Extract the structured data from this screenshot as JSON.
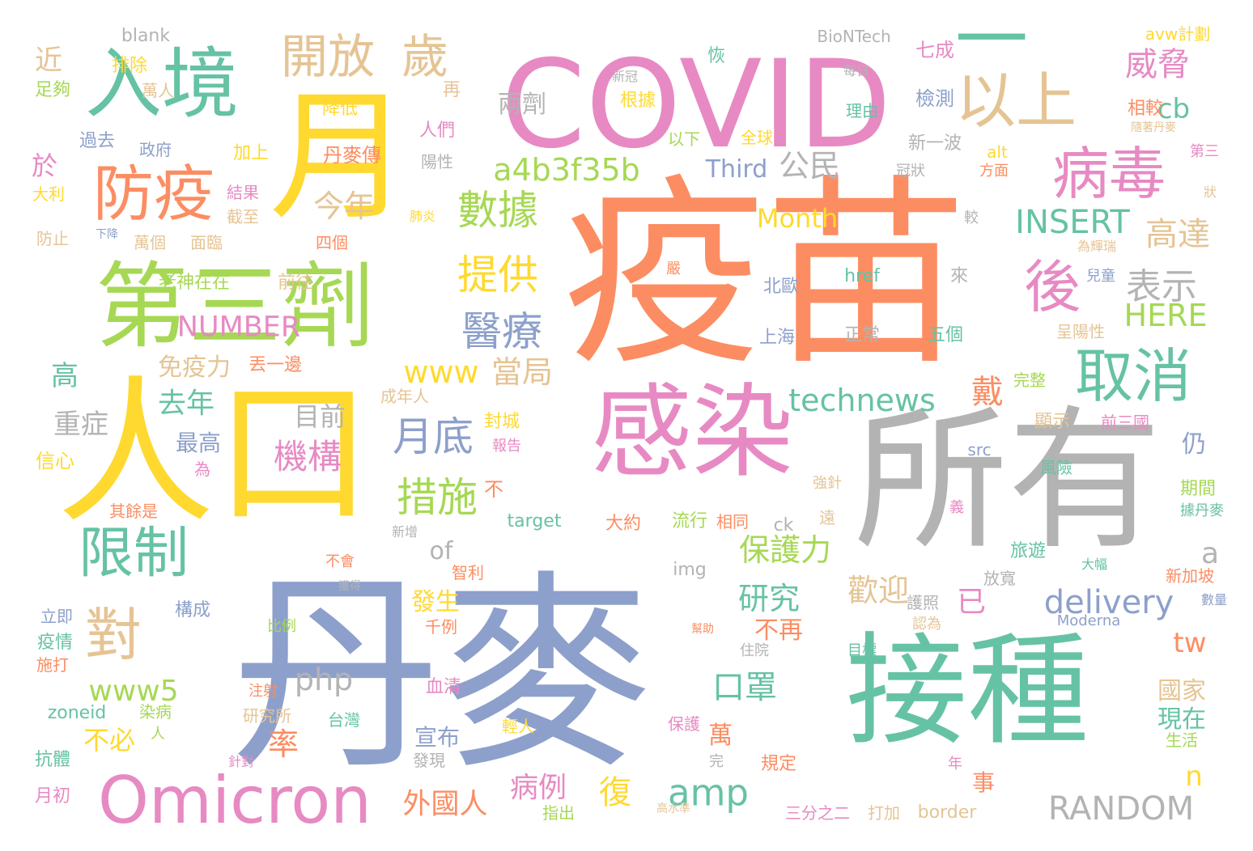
{
  "palette": {
    "green": "#66c2a5",
    "orange": "#fc8d62",
    "blue": "#8da0cb",
    "pink": "#e78ac3",
    "lime": "#a6d854",
    "yellow": "#ffd92f",
    "tan": "#e5c494",
    "gray": "#b3b3b3"
  },
  "words": [
    {
      "text": "疫苗",
      "color": "orange"
    },
    {
      "text": "丹麥",
      "color": "blue"
    },
    {
      "text": "COVID",
      "color": "pink"
    },
    {
      "text": "所有",
      "color": "gray"
    },
    {
      "text": "接種",
      "color": "green"
    },
    {
      "text": "人口",
      "color": "yellow"
    },
    {
      "text": "感染",
      "color": "pink"
    },
    {
      "text": "第三劑",
      "color": "lime"
    },
    {
      "text": "入境",
      "color": "green"
    },
    {
      "text": "月",
      "color": "yellow"
    },
    {
      "text": "以上",
      "color": "tan"
    },
    {
      "text": "一",
      "color": "green"
    },
    {
      "text": "Omicron",
      "color": "pink"
    },
    {
      "text": "防疫",
      "color": "orange"
    },
    {
      "text": "病毒",
      "color": "pink"
    },
    {
      "text": "取消",
      "color": "green"
    },
    {
      "text": "限制",
      "color": "green"
    },
    {
      "text": "開放",
      "color": "tan"
    },
    {
      "text": "歲",
      "color": "tan"
    },
    {
      "text": "後",
      "color": "pink"
    },
    {
      "text": "對",
      "color": "tan"
    },
    {
      "text": "a4b3f35b",
      "color": "lime"
    },
    {
      "text": "數據",
      "color": "lime"
    },
    {
      "text": "提供",
      "color": "yellow"
    },
    {
      "text": "醫療",
      "color": "blue"
    },
    {
      "text": "表示",
      "color": "gray"
    },
    {
      "text": "威脅",
      "color": "pink"
    },
    {
      "text": "INSERT",
      "color": "green"
    },
    {
      "text": "高達",
      "color": "tan"
    },
    {
      "text": "月底",
      "color": "blue"
    },
    {
      "text": "措施",
      "color": "lime"
    },
    {
      "text": "technews",
      "color": "green"
    },
    {
      "text": "RANDOM",
      "color": "gray"
    },
    {
      "text": "delivery",
      "color": "blue"
    },
    {
      "text": "amp",
      "color": "green"
    },
    {
      "text": "機構",
      "color": "pink"
    },
    {
      "text": "www",
      "color": "yellow"
    },
    {
      "text": "當局",
      "color": "tan"
    },
    {
      "text": "Month",
      "color": "yellow"
    },
    {
      "text": "NUMBER",
      "color": "pink"
    },
    {
      "text": "HERE",
      "color": "lime"
    },
    {
      "text": "公民",
      "color": "gray"
    },
    {
      "text": "今年",
      "color": "tan"
    },
    {
      "text": "cb",
      "color": "green"
    },
    {
      "text": "兩劑",
      "color": "gray"
    },
    {
      "text": "Third",
      "color": "blue"
    },
    {
      "text": "目前",
      "color": "gray"
    },
    {
      "text": "去年",
      "color": "green"
    },
    {
      "text": "保護力",
      "color": "lime"
    },
    {
      "text": "研究",
      "color": "green"
    },
    {
      "text": "歡迎",
      "color": "tan"
    },
    {
      "text": "口罩",
      "color": "green"
    },
    {
      "text": "戴",
      "color": "orange"
    },
    {
      "text": "php",
      "color": "gray"
    },
    {
      "text": "www5",
      "color": "lime"
    },
    {
      "text": "病例",
      "color": "pink"
    },
    {
      "text": "外國人",
      "color": "orange"
    },
    {
      "text": "復",
      "color": "yellow"
    },
    {
      "text": "率",
      "color": "orange"
    },
    {
      "text": "萬",
      "color": "orange"
    },
    {
      "text": "已",
      "color": "pink"
    },
    {
      "text": "tw",
      "color": "orange"
    },
    {
      "text": "仍",
      "color": "blue"
    },
    {
      "text": "a",
      "color": "gray"
    },
    {
      "text": "n",
      "color": "yellow"
    },
    {
      "text": "of",
      "color": "gray"
    },
    {
      "text": "免疫力",
      "color": "tan"
    },
    {
      "text": "高",
      "color": "green"
    },
    {
      "text": "重症",
      "color": "gray"
    },
    {
      "text": "最高",
      "color": "blue"
    },
    {
      "text": "不必",
      "color": "yellow"
    },
    {
      "text": "宣布",
      "color": "blue"
    },
    {
      "text": "發生",
      "color": "yellow"
    },
    {
      "text": "不再",
      "color": "orange"
    },
    {
      "text": "國家",
      "color": "tan"
    },
    {
      "text": "現在",
      "color": "green"
    },
    {
      "text": "事",
      "color": "orange"
    },
    {
      "text": "近",
      "color": "tan"
    },
    {
      "text": "於",
      "color": "pink"
    },
    {
      "text": "blank",
      "color": "gray"
    },
    {
      "text": "BioNTech",
      "color": "gray"
    },
    {
      "text": "avw計劃",
      "color": "yellow"
    },
    {
      "text": "排除",
      "color": "yellow"
    },
    {
      "text": "萬人",
      "color": "tan"
    },
    {
      "text": "足夠",
      "color": "lime"
    },
    {
      "text": "恢",
      "color": "green"
    },
    {
      "text": "七成",
      "color": "pink"
    },
    {
      "text": "再",
      "color": "tan"
    },
    {
      "text": "降低",
      "color": "yellow"
    },
    {
      "text": "根據",
      "color": "yellow"
    },
    {
      "text": "檢測",
      "color": "blue"
    },
    {
      "text": "相較",
      "color": "orange"
    },
    {
      "text": "理由",
      "color": "green"
    },
    {
      "text": "每日",
      "color": "gray"
    },
    {
      "text": "新冠",
      "color": "gray"
    },
    {
      "text": "過去",
      "color": "blue"
    },
    {
      "text": "政府",
      "color": "blue"
    },
    {
      "text": "加上",
      "color": "yellow"
    },
    {
      "text": "丹麥傳",
      "color": "orange"
    },
    {
      "text": "人們",
      "color": "pink"
    },
    {
      "text": "以下",
      "color": "lime"
    },
    {
      "text": "全球",
      "color": "yellow"
    },
    {
      "text": "新一波",
      "color": "gray"
    },
    {
      "text": "alt",
      "color": "yellow"
    },
    {
      "text": "隨著丹麥",
      "color": "tan"
    },
    {
      "text": "第三",
      "color": "pink"
    },
    {
      "text": "陽性",
      "color": "gray"
    },
    {
      "text": "冠狀",
      "color": "gray"
    },
    {
      "text": "方面",
      "color": "orange"
    },
    {
      "text": "大利",
      "color": "yellow"
    },
    {
      "text": "結果",
      "color": "pink"
    },
    {
      "text": "截至",
      "color": "tan"
    },
    {
      "text": "較",
      "color": "gray"
    },
    {
      "text": "狀",
      "color": "tan"
    },
    {
      "text": "防止",
      "color": "tan"
    },
    {
      "text": "下降",
      "color": "blue"
    },
    {
      "text": "萬個",
      "color": "tan"
    },
    {
      "text": "面臨",
      "color": "tan"
    },
    {
      "text": "四個",
      "color": "orange"
    },
    {
      "text": "肺炎",
      "color": "yellow"
    },
    {
      "text": "為輝瑞",
      "color": "tan"
    },
    {
      "text": "嚴",
      "color": "orange"
    },
    {
      "text": "老神在在",
      "color": "lime"
    },
    {
      "text": "前往",
      "color": "tan"
    },
    {
      "text": "北歐",
      "color": "blue"
    },
    {
      "text": "href",
      "color": "green"
    },
    {
      "text": "來",
      "color": "gray"
    },
    {
      "text": "兒童",
      "color": "blue"
    },
    {
      "text": "上海",
      "color": "blue"
    },
    {
      "text": "正常",
      "color": "gray"
    },
    {
      "text": "五個",
      "color": "green"
    },
    {
      "text": "呈陽性",
      "color": "tan"
    },
    {
      "text": "丟一邊",
      "color": "orange"
    },
    {
      "text": "完整",
      "color": "lime"
    },
    {
      "text": "成年人",
      "color": "tan"
    },
    {
      "text": "封城",
      "color": "yellow"
    },
    {
      "text": "顯示",
      "color": "tan"
    },
    {
      "text": "前三國",
      "color": "pink"
    },
    {
      "text": "信心",
      "color": "yellow"
    },
    {
      "text": "為",
      "color": "pink"
    },
    {
      "text": "報告",
      "color": "pink"
    },
    {
      "text": "src",
      "color": "blue"
    },
    {
      "text": "風險",
      "color": "green"
    },
    {
      "text": "不",
      "color": "orange"
    },
    {
      "text": "強針",
      "color": "tan"
    },
    {
      "text": "期間",
      "color": "lime"
    },
    {
      "text": "其餘是",
      "color": "orange"
    },
    {
      "text": "target",
      "color": "green"
    },
    {
      "text": "大約",
      "color": "orange"
    },
    {
      "text": "流行",
      "color": "lime"
    },
    {
      "text": "相同",
      "color": "orange"
    },
    {
      "text": "ck",
      "color": "gray"
    },
    {
      "text": "遠",
      "color": "tan"
    },
    {
      "text": "義",
      "color": "pink"
    },
    {
      "text": "據丹麥",
      "color": "green"
    },
    {
      "text": "新增",
      "color": "gray"
    },
    {
      "text": "旅遊",
      "color": "green"
    },
    {
      "text": "大幅",
      "color": "green"
    },
    {
      "text": "不會",
      "color": "orange"
    },
    {
      "text": "智利",
      "color": "orange"
    },
    {
      "text": "獲得",
      "color": "gray"
    },
    {
      "text": "img",
      "color": "gray"
    },
    {
      "text": "新加坡",
      "color": "orange"
    },
    {
      "text": "立即",
      "color": "blue"
    },
    {
      "text": "構成",
      "color": "blue"
    },
    {
      "text": "放寬",
      "color": "gray"
    },
    {
      "text": "護照",
      "color": "gray"
    },
    {
      "text": "數量",
      "color": "blue"
    },
    {
      "text": "比例",
      "color": "lime"
    },
    {
      "text": "千例",
      "color": "orange"
    },
    {
      "text": "幫助",
      "color": "orange"
    },
    {
      "text": "認為",
      "color": "tan"
    },
    {
      "text": "Moderna",
      "color": "blue"
    },
    {
      "text": "疫情",
      "color": "green"
    },
    {
      "text": "施打",
      "color": "orange"
    },
    {
      "text": "住院",
      "color": "gray"
    },
    {
      "text": "目標",
      "color": "green"
    },
    {
      "text": "注射",
      "color": "orange"
    },
    {
      "text": "血清",
      "color": "pink"
    },
    {
      "text": "zoneid",
      "color": "green"
    },
    {
      "text": "染病",
      "color": "lime"
    },
    {
      "text": "人",
      "color": "lime"
    },
    {
      "text": "研究所",
      "color": "tan"
    },
    {
      "text": "台灣",
      "color": "green"
    },
    {
      "text": "輕人",
      "color": "yellow"
    },
    {
      "text": "保護",
      "color": "pink"
    },
    {
      "text": "生活",
      "color": "lime"
    },
    {
      "text": "抗體",
      "color": "green"
    },
    {
      "text": "發現",
      "color": "gray"
    },
    {
      "text": "針對",
      "color": "pink"
    },
    {
      "text": "完",
      "color": "gray"
    },
    {
      "text": "規定",
      "color": "orange"
    },
    {
      "text": "年",
      "color": "pink"
    },
    {
      "text": "月初",
      "color": "pink"
    },
    {
      "text": "指出",
      "color": "lime"
    },
    {
      "text": "高水準",
      "color": "tan"
    },
    {
      "text": "三分之二",
      "color": "pink"
    },
    {
      "text": "打加",
      "color": "tan"
    },
    {
      "text": "border",
      "color": "tan"
    }
  ]
}
